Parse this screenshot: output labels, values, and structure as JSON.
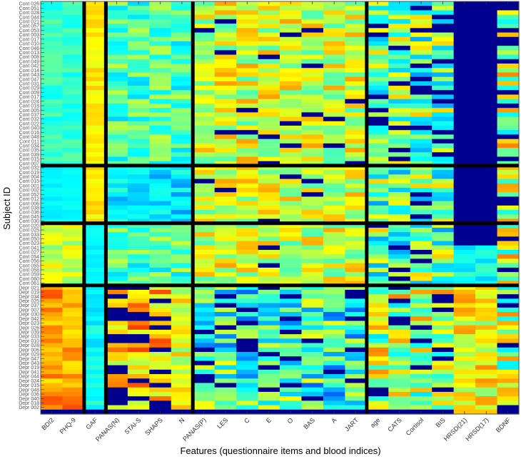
{
  "chart_data": {
    "type": "heatmap",
    "title": "",
    "xlabel": "Features (questionnaire items and blood indices)",
    "ylabel": "Subject ID",
    "colormap": "jet",
    "colormap_stops": [
      "#00008f",
      "#0000ff",
      "#0080ff",
      "#00ffff",
      "#80ff80",
      "#ffff00",
      "#ff8000",
      "#ff0000",
      "#800000"
    ],
    "value_range": [
      0,
      1
    ],
    "columns": [
      "BDI2",
      "PHQ-9",
      "GAF",
      "PANAS(N)",
      "STAI-S",
      "SHAPS",
      "N",
      "PANAS(P)",
      "LES",
      "C",
      "E",
      "O",
      "BAS",
      "A",
      "JART",
      "age",
      "CATS",
      "Cortisol",
      "BIS",
      "HRSD(21)",
      "HRSD(17)",
      "BDNF"
    ],
    "column_group_sizes": [
      2,
      1,
      4,
      8,
      7
    ],
    "row_groups": [
      {
        "name": "Cont",
        "rows": 37,
        "profile": "control-a"
      },
      {
        "name": "Cont",
        "rows": 13,
        "profile": "control-b"
      },
      {
        "name": "Cont",
        "rows": 14,
        "profile": "control-c"
      },
      {
        "name": "Depr",
        "rows": 28,
        "profile": "depressed"
      }
    ],
    "row_labels_top": [
      "Cont 026",
      "Cont 051",
      "Cont 028",
      "Cont 044",
      "Cont 021",
      "Cont 057",
      "Cont 053",
      "Cont 003",
      "Cont 017",
      "Cont 010",
      "Cont 046",
      "Cont 013",
      "Cont 008",
      "Cont 049",
      "Cont 042",
      "Cont 014",
      "Cont 043",
      "Cont 047",
      "Cont 031",
      "Cont 029",
      "Cont 009",
      "Cont 017",
      "Cont 024",
      "Cont 018",
      "Cont 005",
      "Cont 037",
      "Cont 032",
      "Cont 022",
      "Cont 040",
      "Cont 016",
      "Cont 048",
      "Cont 011",
      "Cont 034",
      "Cont 035",
      "Cont 039",
      "Cont 015",
      "Cont 007"
    ],
    "row_labels_mid1": [
      "Cont 032",
      "Cont 019",
      "Cont 004",
      "Cont 015",
      "Cont 001",
      "Cont 002",
      "Cont 052",
      "Cont 012",
      "Cont 006",
      "Cont 038",
      "Cont 036",
      "Cont 045",
      "Cont 030"
    ],
    "row_labels_mid2": [
      "Cont 020",
      "Cont 025",
      "Cont 033",
      "Cont 050",
      "Cont 023",
      "Cont 041",
      "Cont 027",
      "Cont 054",
      "Cont 056",
      "Cont 055",
      "Cont 058",
      "Cont 059",
      "Cont 060",
      "Cont 061"
    ],
    "row_labels_bottom": [
      "Depr 021",
      "Depr 019",
      "Depr 034",
      "Depr 025",
      "Depr 037",
      "Depr 007",
      "Depr 030",
      "Depr 042",
      "Depr 023",
      "Depr 026",
      "Depr 039",
      "Depr 033",
      "Depr 010",
      "Depr 028",
      "Depr 006",
      "Depr 029",
      "Depr 047",
      "Depr 043",
      "Depr 019",
      "Depr 041",
      "Depr 044",
      "Depr 024",
      "Depr 015",
      "Depr 048",
      "Depr 036",
      "Depr 040",
      "Depr 018",
      "Depr 002"
    ],
    "seed": 7,
    "grid": false,
    "legend": "none"
  },
  "colors": {
    "separator": "#000000",
    "baseline_row": "#00008f",
    "tick_text": "#333333",
    "axis_title": "#000000"
  }
}
